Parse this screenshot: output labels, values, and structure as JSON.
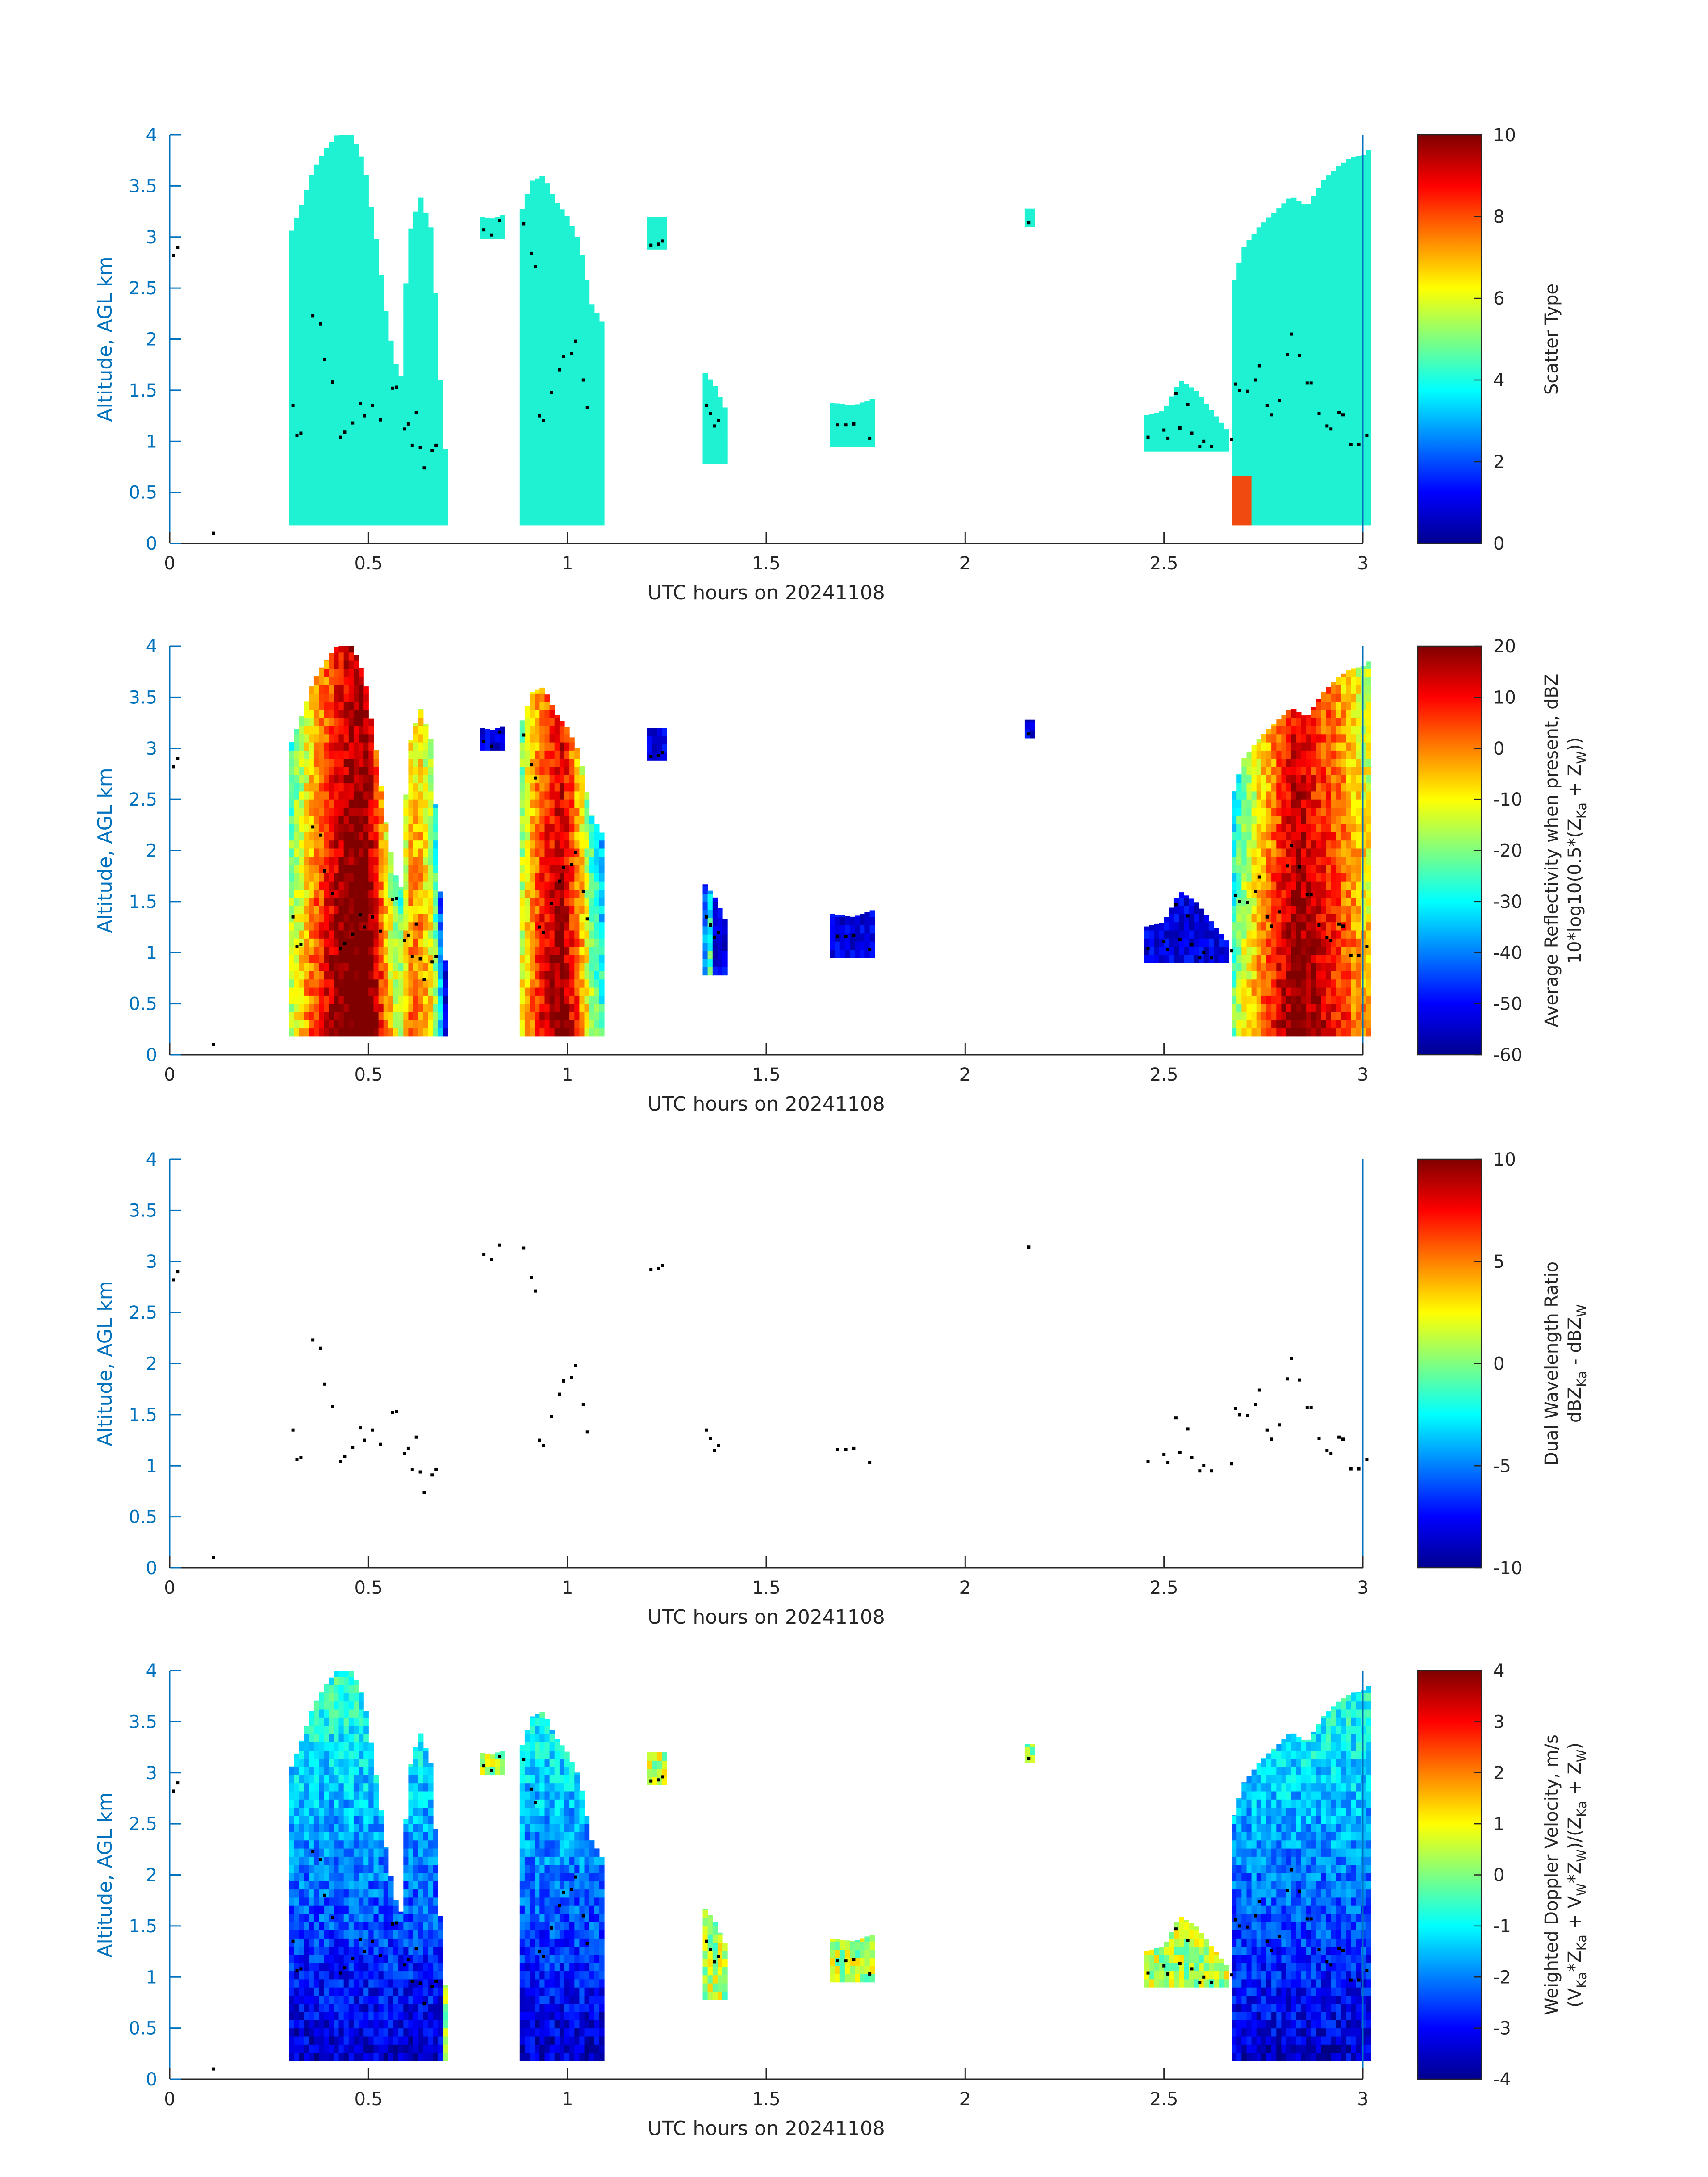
{
  "figure": {
    "date_label": "UTC hours on 20241108",
    "colors": {
      "axis": "#0072BD",
      "text": "#262626",
      "dots": "#000000",
      "scatter_fill": "#1EF2D2",
      "scatter_fill_alt": "#F04A10"
    }
  },
  "chart_data": [
    {
      "type": "heatmap",
      "panel": 1,
      "xlabel": "UTC hours on 20241108",
      "ylabel": "Altitude, AGL km",
      "xlim": [
        0,
        3
      ],
      "ylim": [
        0,
        4
      ],
      "xticks": [
        "0",
        "0.5",
        "1",
        "1.5",
        "2",
        "2.5",
        "3"
      ],
      "yticks": [
        "0",
        "0.5",
        "1",
        "1.5",
        "2",
        "2.5",
        "3",
        "3.5",
        "4"
      ],
      "colorbar": {
        "label": "Scatter Type",
        "lines": [
          "Scatter Type"
        ],
        "range": [
          0,
          10
        ],
        "ticks": [
          "0",
          "2",
          "4",
          "6",
          "8",
          "10"
        ]
      },
      "field": "scatter"
    },
    {
      "type": "heatmap",
      "panel": 2,
      "xlabel": "UTC hours on 20241108",
      "ylabel": "Altitude, AGL km",
      "xlim": [
        0,
        3
      ],
      "ylim": [
        0,
        4
      ],
      "xticks": [
        "0",
        "0.5",
        "1",
        "1.5",
        "2",
        "2.5",
        "3"
      ],
      "yticks": [
        "0",
        "0.5",
        "1",
        "1.5",
        "2",
        "2.5",
        "3",
        "3.5",
        "4"
      ],
      "colorbar": {
        "label": "Average Reflectivity when present, dBZ",
        "lines": [
          "Average Reflectivity when present, dBZ",
          "10*log10(0.5*(Z_Ka + Z_W))"
        ],
        "range": [
          -60,
          20
        ],
        "ticks": [
          "-60",
          "-50",
          "-40",
          "-30",
          "-20",
          "-10",
          "0",
          "10",
          "20"
        ]
      },
      "field": "reflectivity"
    },
    {
      "type": "heatmap",
      "panel": 3,
      "xlabel": "UTC hours on 20241108",
      "ylabel": "Altitude, AGL km",
      "xlim": [
        0,
        3
      ],
      "ylim": [
        0,
        4
      ],
      "xticks": [
        "0",
        "0.5",
        "1",
        "1.5",
        "2",
        "2.5",
        "3"
      ],
      "yticks": [
        "0",
        "0.5",
        "1",
        "1.5",
        "2",
        "2.5",
        "3",
        "3.5",
        "4"
      ],
      "colorbar": {
        "label": "Dual Wavelength Ratio",
        "lines": [
          "Dual Wavelength Ratio",
          "dBZ_Ka - dBZ_W"
        ],
        "range": [
          -10,
          10
        ],
        "ticks": [
          "-10",
          "-5",
          "0",
          "5",
          "10"
        ]
      },
      "field": "empty"
    },
    {
      "type": "heatmap",
      "panel": 4,
      "xlabel": "UTC hours on 20241108",
      "ylabel": "Altitude, AGL km",
      "xlim": [
        0,
        3
      ],
      "ylim": [
        0,
        4
      ],
      "xticks": [
        "0",
        "0.5",
        "1",
        "1.5",
        "2",
        "2.5",
        "3"
      ],
      "yticks": [
        "0",
        "0.5",
        "1",
        "1.5",
        "2",
        "2.5",
        "3",
        "3.5",
        "4"
      ],
      "colorbar": {
        "label": "Weighted Doppler Velocity, m/s",
        "lines": [
          "Weighted Doppler Velocity, m/s",
          "(V_Ka*Z_Ka + V_W*Z_W)/(Z_Ka + Z_W)"
        ],
        "range": [
          -4,
          4
        ],
        "ticks": [
          "-4",
          "-3",
          "-2",
          "-1",
          "0",
          "1",
          "2",
          "3",
          "4"
        ]
      },
      "field": "velocity"
    }
  ],
  "cloud_regions": [
    {
      "x0": 0.3,
      "x1": 0.7,
      "base": 0.18,
      "top": [
        [
          0.3,
          3.0
        ],
        [
          0.33,
          3.3
        ],
        [
          0.36,
          3.65
        ],
        [
          0.39,
          3.85
        ],
        [
          0.42,
          4.0
        ],
        [
          0.46,
          4.0
        ],
        [
          0.49,
          3.7
        ],
        [
          0.52,
          2.95
        ],
        [
          0.55,
          2.1
        ],
        [
          0.58,
          1.55
        ],
        [
          0.6,
          3.0
        ],
        [
          0.63,
          3.4
        ],
        [
          0.66,
          3.05
        ],
        [
          0.69,
          1.0
        ],
        [
          0.7,
          0.8
        ]
      ]
    },
    {
      "x0": 0.78,
      "x1": 0.84,
      "base": 2.98,
      "top": [
        [
          0.78,
          3.2
        ],
        [
          0.81,
          3.18
        ],
        [
          0.84,
          3.22
        ]
      ]
    },
    {
      "x0": 0.88,
      "x1": 1.09,
      "base": 0.18,
      "top": [
        [
          0.88,
          3.2
        ],
        [
          0.91,
          3.55
        ],
        [
          0.94,
          3.6
        ],
        [
          0.97,
          3.35
        ],
        [
          1.0,
          3.2
        ],
        [
          1.03,
          2.95
        ],
        [
          1.06,
          2.35
        ],
        [
          1.09,
          2.15
        ]
      ]
    },
    {
      "x0": 1.2,
      "x1": 1.25,
      "base": 2.88,
      "top": [
        [
          1.2,
          3.2
        ],
        [
          1.25,
          3.2
        ]
      ]
    },
    {
      "x0": 1.34,
      "x1": 1.4,
      "base": 0.78,
      "top": [
        [
          1.34,
          1.7
        ],
        [
          1.37,
          1.55
        ],
        [
          1.4,
          1.3
        ]
      ]
    },
    {
      "x0": 1.66,
      "x1": 1.77,
      "base": 0.95,
      "top": [
        [
          1.66,
          1.38
        ],
        [
          1.72,
          1.35
        ],
        [
          1.77,
          1.42
        ]
      ]
    },
    {
      "x0": 2.15,
      "x1": 2.17,
      "base": 3.1,
      "top": [
        [
          2.15,
          3.28
        ],
        [
          2.17,
          3.28
        ]
      ]
    },
    {
      "x0": 2.45,
      "x1": 2.66,
      "base": 0.9,
      "top": [
        [
          2.45,
          1.25
        ],
        [
          2.5,
          1.3
        ],
        [
          2.54,
          1.6
        ],
        [
          2.58,
          1.5
        ],
        [
          2.62,
          1.3
        ],
        [
          2.66,
          1.1
        ]
      ]
    },
    {
      "x0": 2.67,
      "x1": 3.01,
      "base": 0.18,
      "top": [
        [
          2.67,
          2.5
        ],
        [
          2.7,
          2.9
        ],
        [
          2.74,
          3.1
        ],
        [
          2.78,
          3.25
        ],
        [
          2.82,
          3.4
        ],
        [
          2.86,
          3.3
        ],
        [
          2.9,
          3.55
        ],
        [
          2.94,
          3.7
        ],
        [
          2.97,
          3.78
        ],
        [
          3.0,
          3.8
        ],
        [
          3.01,
          3.85
        ]
      ]
    }
  ],
  "dots": [
    [
      0.01,
      2.82
    ],
    [
      0.02,
      2.9
    ],
    [
      0.11,
      0.1
    ],
    [
      0.31,
      1.35
    ],
    [
      0.32,
      1.06
    ],
    [
      0.33,
      1.08
    ],
    [
      0.36,
      2.23
    ],
    [
      0.38,
      2.15
    ],
    [
      0.39,
      1.8
    ],
    [
      0.41,
      1.58
    ],
    [
      0.43,
      1.04
    ],
    [
      0.44,
      1.09
    ],
    [
      0.46,
      1.18
    ],
    [
      0.48,
      1.37
    ],
    [
      0.49,
      1.25
    ],
    [
      0.51,
      1.35
    ],
    [
      0.53,
      1.21
    ],
    [
      0.56,
      1.52
    ],
    [
      0.57,
      1.53
    ],
    [
      0.59,
      1.12
    ],
    [
      0.6,
      1.17
    ],
    [
      0.61,
      0.96
    ],
    [
      0.62,
      1.28
    ],
    [
      0.63,
      0.94
    ],
    [
      0.64,
      0.74
    ],
    [
      0.66,
      0.91
    ],
    [
      0.67,
      0.96
    ],
    [
      0.79,
      3.07
    ],
    [
      0.81,
      3.02
    ],
    [
      0.83,
      3.16
    ],
    [
      0.89,
      3.13
    ],
    [
      0.91,
      2.84
    ],
    [
      0.92,
      2.71
    ],
    [
      0.93,
      1.25
    ],
    [
      0.94,
      1.2
    ],
    [
      0.96,
      1.48
    ],
    [
      0.98,
      1.7
    ],
    [
      0.99,
      1.83
    ],
    [
      1.01,
      1.86
    ],
    [
      1.02,
      1.98
    ],
    [
      1.04,
      1.6
    ],
    [
      1.05,
      1.33
    ],
    [
      1.21,
      2.92
    ],
    [
      1.23,
      2.93
    ],
    [
      1.24,
      2.96
    ],
    [
      1.35,
      1.35
    ],
    [
      1.36,
      1.27
    ],
    [
      1.37,
      1.15
    ],
    [
      1.38,
      1.2
    ],
    [
      1.68,
      1.16
    ],
    [
      1.7,
      1.16
    ],
    [
      1.72,
      1.17
    ],
    [
      1.76,
      1.03
    ],
    [
      2.16,
      3.14
    ],
    [
      2.46,
      1.04
    ],
    [
      2.5,
      1.11
    ],
    [
      2.51,
      1.03
    ],
    [
      2.53,
      1.47
    ],
    [
      2.54,
      1.13
    ],
    [
      2.56,
      1.36
    ],
    [
      2.57,
      1.08
    ],
    [
      2.59,
      0.95
    ],
    [
      2.6,
      1.0
    ],
    [
      2.62,
      0.95
    ],
    [
      2.67,
      1.02
    ],
    [
      2.68,
      1.56
    ],
    [
      2.69,
      1.5
    ],
    [
      2.71,
      1.49
    ],
    [
      2.73,
      1.6
    ],
    [
      2.74,
      1.74
    ],
    [
      2.76,
      1.35
    ],
    [
      2.77,
      1.26
    ],
    [
      2.79,
      1.4
    ],
    [
      2.81,
      1.85
    ],
    [
      2.82,
      2.05
    ],
    [
      2.84,
      1.84
    ],
    [
      2.86,
      1.57
    ],
    [
      2.87,
      1.57
    ],
    [
      2.89,
      1.27
    ],
    [
      2.91,
      1.15
    ],
    [
      2.92,
      1.12
    ],
    [
      2.94,
      1.28
    ],
    [
      2.95,
      1.26
    ],
    [
      2.97,
      0.97
    ],
    [
      2.99,
      0.97
    ],
    [
      3.01,
      1.06
    ]
  ]
}
